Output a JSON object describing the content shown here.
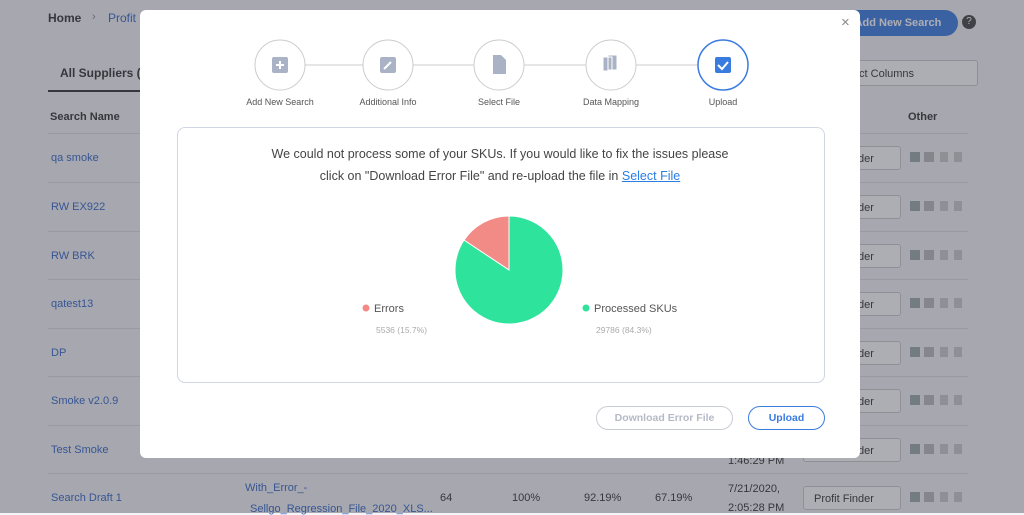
{
  "background": {
    "breadcrumb": [
      "Home",
      "Profit"
    ],
    "tab": "All Suppliers (",
    "add_button": "Add New Search",
    "columns_select": "Select Columns",
    "column_headers": {
      "name": "Search Name",
      "other": "Other"
    },
    "rows": [
      "qa smoke",
      "RW EX922",
      "RW BRK",
      "qatest13",
      "DP",
      "Smoke v2.0.9",
      "Test Smoke",
      "Search Draft 1"
    ],
    "row_action": "Profit Finder",
    "partial_time": "1:46:29 PM",
    "last_row": {
      "file": [
        "With_Error_-",
        "Sellgo_Regression_File_2020_XLS..."
      ],
      "count": "64",
      "pct1": "100%",
      "pct2": "92.19%",
      "pct3": "67.19%",
      "date": [
        "7/21/2020,",
        "2:05:28 PM"
      ]
    }
  },
  "modal": {
    "close": "×",
    "steps": [
      "Add New Search",
      "Additional Info",
      "Select File",
      "Data Mapping",
      "Upload"
    ],
    "message": [
      "We could not process some of your SKUs. If you would like to fix the issues please",
      "click on \"Download Error File\" and re-upload the file in"
    ],
    "message_link": "Select File",
    "buttons": {
      "download": "Download Error File",
      "upload": "Upload"
    }
  },
  "chart_data": {
    "type": "pie",
    "categories": [
      "Errors",
      "Processed SKUs"
    ],
    "values": [
      5536,
      29786
    ],
    "value_labels": [
      "5536 (15.7%)",
      "29786 (84.3%)"
    ],
    "colors": [
      "#f28a86",
      "#2ee39b"
    ]
  }
}
